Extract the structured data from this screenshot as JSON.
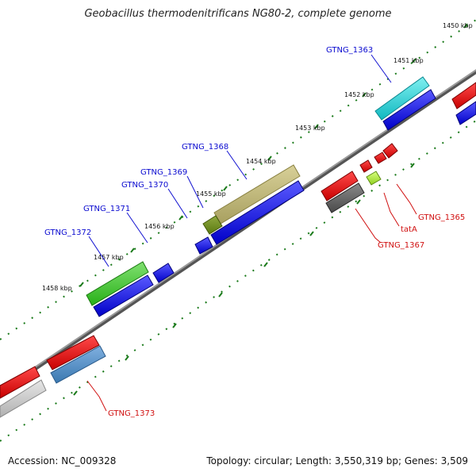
{
  "title": "Geobacillus thermodenitrificans NG80-2, complete genome",
  "footer": {
    "accession": "Accession: NC_009328",
    "summary": "Topology: circular; Length: 3,550,319 bp; Genes: 3,509"
  },
  "scale_labels": [
    "1450 kbp",
    "1451 kbp",
    "1452 kbp",
    "1453 kbp",
    "1454 kbp",
    "1455 kbp",
    "1456 kbp",
    "1457 kbp",
    "1458 kbp"
  ],
  "gene_labels_top": [
    "GTNG_1363",
    "GTNG_1368",
    "GTNG_1369",
    "GTNG_1370",
    "GTNG_1371",
    "GTNG_1372"
  ],
  "gene_labels_bottom": [
    "GTNG_1365",
    "tatA",
    "GTNG_1367",
    "GTNG_1373"
  ],
  "colors": {
    "backbone": "#7a7a7a",
    "cds": "#1010e0",
    "gene_red": "#e01010",
    "label_blue": "#0a0ad0",
    "label_red": "#d01010",
    "tick": "#1a7a1a"
  }
}
